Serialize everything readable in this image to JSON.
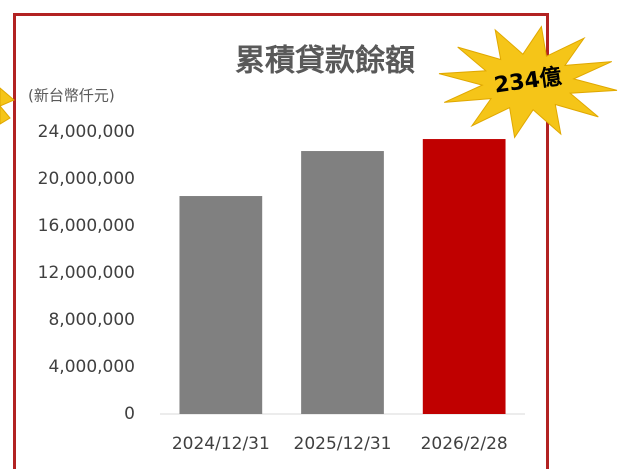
{
  "chart_data": {
    "type": "bar",
    "title": "累積貸款餘額",
    "y_axis_label": "(新台幣仟元)",
    "categories": [
      "2024/12/31",
      "2025/12/31",
      "2026/2/28"
    ],
    "values": [
      18550000,
      22380000,
      23400000
    ],
    "colors": [
      "#808080",
      "#808080",
      "#c00000"
    ],
    "ylim": [
      0,
      24000000
    ],
    "yticks": [
      0,
      {
        "value": 4000000,
        "label": "4,000,000"
      },
      {
        "value": 8000000,
        "label": "8,000,000"
      },
      {
        "value": 12000000,
        "label": "12,000,000"
      },
      {
        "value": 16000000,
        "label": "16,000,000"
      },
      {
        "value": 20000000,
        "label": "20,000,000"
      },
      {
        "value": 24000000,
        "label": "24,000,000"
      }
    ],
    "grid": false,
    "annotation": "234億"
  }
}
